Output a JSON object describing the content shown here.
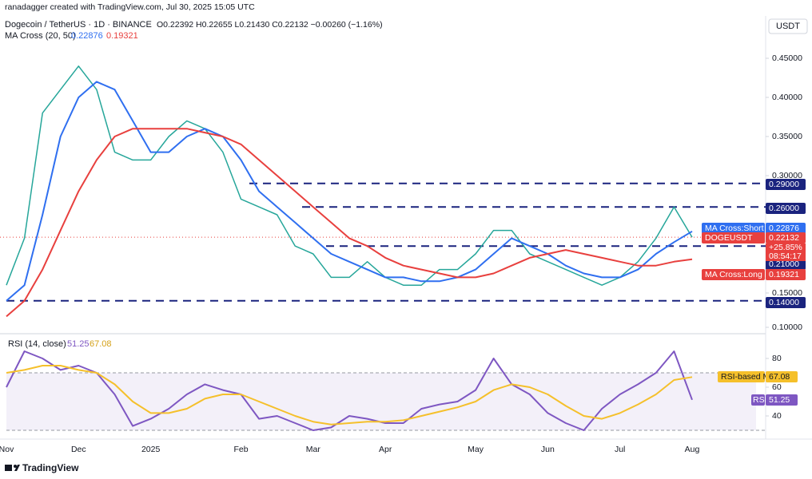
{
  "chart_data": [
    {
      "type": "line",
      "credit": "ranadagger created with TradingView.com, Jul 30, 2025 15:05 UTC",
      "title": "Dogecoin / TetherUS · 1D · BINANCE",
      "subtitle": "O0.22392 H0.22655 L0.21430 C0.22132 −0.00260 (−1.16%)",
      "indicator": "MA Cross (20, 50)",
      "unit": "USDT",
      "brand": "TradingView",
      "categories": [
        "Nov",
        null,
        null,
        null,
        "Dec",
        null,
        null,
        null,
        "2025",
        null,
        null,
        null,
        null,
        "Feb",
        null,
        null,
        null,
        "Mar",
        null,
        null,
        null,
        "Apr",
        null,
        null,
        null,
        null,
        "May",
        null,
        null,
        null,
        "Jun",
        null,
        null,
        null,
        "Jul",
        null,
        null,
        null,
        "Aug"
      ],
      "ylim": [
        0.1,
        0.5
      ],
      "yticks": [
        {
          "value": 0.45,
          "label": "0.45000"
        },
        {
          "value": 0.4,
          "label": "0.40000"
        },
        {
          "value": 0.35,
          "label": "0.35000"
        },
        {
          "value": 0.3,
          "label": "0.30000"
        },
        {
          "value": 0.15,
          "label": "0.15000"
        },
        {
          "value": 0.1,
          "label": "0.10000"
        }
      ],
      "levels": [
        {
          "value": 0.29,
          "label": "0.29000"
        },
        {
          "value": 0.26,
          "label": "0.26000"
        },
        {
          "value": 0.21,
          "label": "0.21000"
        },
        {
          "value": 0.14,
          "label": "0.14000"
        }
      ],
      "series": [
        {
          "name": "DOGEUSDT",
          "color": "#26a69a",
          "change": "+25.85%",
          "countdown": "08:54:17",
          "values": [
            0.16,
            0.22,
            0.38,
            0.41,
            0.44,
            0.41,
            0.33,
            0.32,
            0.32,
            0.35,
            0.37,
            0.36,
            0.33,
            0.27,
            0.26,
            0.25,
            0.21,
            0.2,
            0.17,
            0.17,
            0.19,
            0.17,
            0.16,
            0.16,
            0.18,
            0.18,
            0.2,
            0.23,
            0.23,
            0.2,
            0.19,
            0.18,
            0.17,
            0.16,
            0.17,
            0.19,
            0.22,
            0.26,
            0.22132
          ]
        },
        {
          "name": "MA Cross:Short MA",
          "color": "#2f6ff0",
          "values": [
            0.14,
            0.16,
            0.25,
            0.35,
            0.4,
            0.42,
            0.41,
            0.37,
            0.33,
            0.33,
            0.35,
            0.36,
            0.35,
            0.32,
            0.28,
            0.26,
            0.24,
            0.22,
            0.2,
            0.19,
            0.18,
            0.17,
            0.17,
            0.165,
            0.165,
            0.17,
            0.18,
            0.2,
            0.22,
            0.21,
            0.2,
            0.185,
            0.175,
            0.17,
            0.17,
            0.18,
            0.2,
            0.215,
            0.22876
          ]
        },
        {
          "name": "MA Cross:Long MA",
          "color": "#e8403e",
          "values": [
            0.12,
            0.14,
            0.18,
            0.23,
            0.28,
            0.32,
            0.35,
            0.36,
            0.36,
            0.36,
            0.36,
            0.355,
            0.35,
            0.34,
            0.32,
            0.3,
            0.28,
            0.26,
            0.24,
            0.22,
            0.21,
            0.195,
            0.185,
            0.18,
            0.175,
            0.17,
            0.17,
            0.175,
            0.185,
            0.195,
            0.2,
            0.205,
            0.2,
            0.195,
            0.19,
            0.185,
            0.185,
            0.19,
            0.19321
          ]
        }
      ]
    },
    {
      "type": "line",
      "title": "RSI (14, close)",
      "ylim": [
        25,
        95
      ],
      "yticks": [
        80,
        60,
        40
      ],
      "band": [
        30,
        70
      ],
      "series": [
        {
          "name": "RSI",
          "color": "#7e57c2",
          "values": [
            60,
            85,
            80,
            72,
            75,
            70,
            55,
            33,
            38,
            45,
            55,
            62,
            58,
            55,
            38,
            40,
            35,
            30,
            32,
            40,
            38,
            35,
            35,
            45,
            48,
            50,
            58,
            80,
            62,
            55,
            42,
            35,
            30,
            45,
            55,
            62,
            70,
            85,
            51.25
          ]
        },
        {
          "name": "RSI-based MA",
          "color": "#f5c02b",
          "values": [
            70,
            72,
            75,
            75,
            72,
            70,
            62,
            50,
            42,
            42,
            45,
            52,
            55,
            55,
            50,
            45,
            40,
            36,
            34,
            35,
            36,
            36,
            37,
            40,
            43,
            46,
            50,
            58,
            62,
            60,
            55,
            47,
            40,
            38,
            42,
            48,
            55,
            65,
            67.08
          ]
        }
      ]
    }
  ]
}
